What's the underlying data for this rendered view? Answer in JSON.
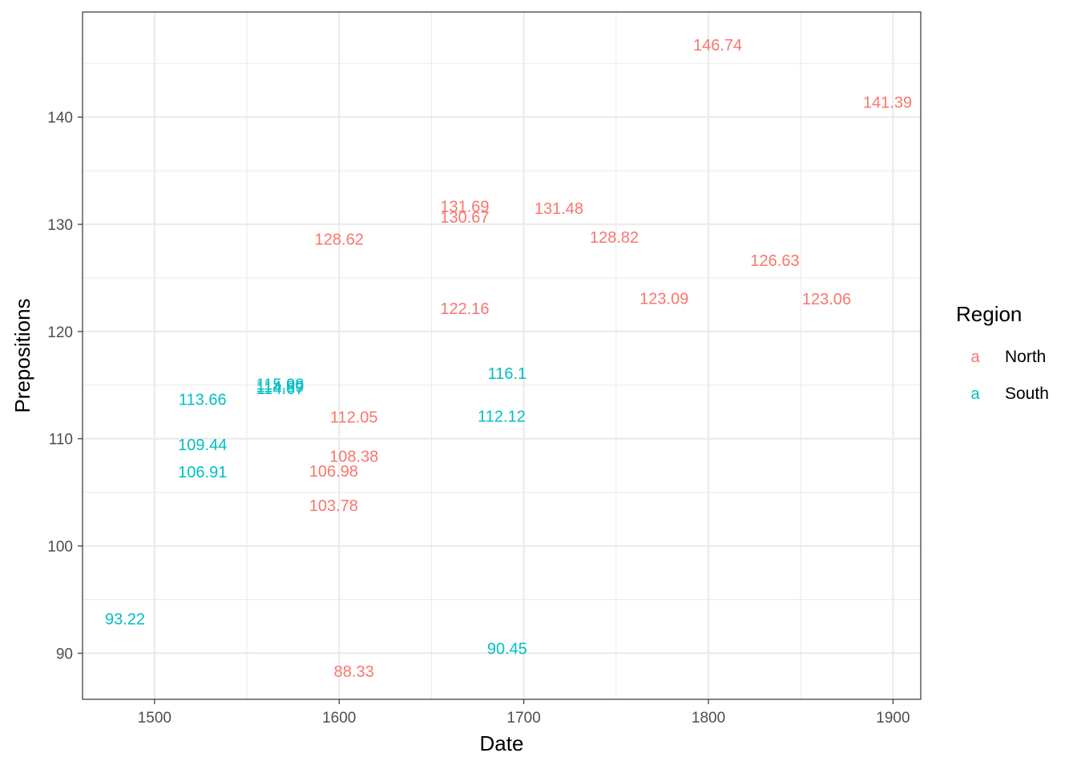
{
  "chart_data": {
    "type": "scatter",
    "mark": "text",
    "xlabel": "Date",
    "ylabel": "Prepositions",
    "xlim": [
      1461,
      1915
    ],
    "ylim": [
      85.7,
      149.8
    ],
    "xticks": [
      1500,
      1600,
      1700,
      1800,
      1900
    ],
    "yticks": [
      90,
      100,
      110,
      120,
      130,
      140
    ],
    "xticks_minor": [
      1550,
      1650,
      1750,
      1850
    ],
    "yticks_minor": [
      95,
      105,
      115,
      125,
      135,
      145
    ],
    "grid": true,
    "legend": {
      "title": "Region",
      "placement": "right",
      "key_glyph": "a"
    },
    "series": [
      {
        "name": "North",
        "color": "#F8766D",
        "points": [
          {
            "x": 1600,
            "y": 128.62,
            "label": "128.62"
          },
          {
            "x": 1608,
            "y": 112.05,
            "label": "112.05"
          },
          {
            "x": 1608,
            "y": 108.38,
            "label": "108.38"
          },
          {
            "x": 1597,
            "y": 106.98,
            "label": "106.98"
          },
          {
            "x": 1597,
            "y": 103.78,
            "label": "103.78"
          },
          {
            "x": 1608,
            "y": 88.33,
            "label": "88.33"
          },
          {
            "x": 1668,
            "y": 131.69,
            "label": "131.69"
          },
          {
            "x": 1668,
            "y": 130.67,
            "label": "130.67"
          },
          {
            "x": 1668,
            "y": 122.16,
            "label": "122.16"
          },
          {
            "x": 1719,
            "y": 131.48,
            "label": "131.48"
          },
          {
            "x": 1749,
            "y": 128.82,
            "label": "128.82"
          },
          {
            "x": 1776,
            "y": 123.09,
            "label": "123.09"
          },
          {
            "x": 1805,
            "y": 146.74,
            "label": "146.74"
          },
          {
            "x": 1836,
            "y": 126.63,
            "label": "126.63"
          },
          {
            "x": 1864,
            "y": 123.06,
            "label": "123.06"
          },
          {
            "x": 1897,
            "y": 141.39,
            "label": "141.39"
          }
        ]
      },
      {
        "name": "South",
        "color": "#00BFC4",
        "points": [
          {
            "x": 1484,
            "y": 93.22,
            "label": "93.22"
          },
          {
            "x": 1526,
            "y": 113.66,
            "label": "113.66"
          },
          {
            "x": 1526,
            "y": 109.44,
            "label": "109.44"
          },
          {
            "x": 1526,
            "y": 106.91,
            "label": "106.91"
          },
          {
            "x": 1568,
            "y": 115.08,
            "label": "115.08"
          },
          {
            "x": 1568,
            "y": 114.89,
            "label": "114.89"
          },
          {
            "x": 1568,
            "y": 114.67,
            "label": "114.67"
          },
          {
            "x": 1691,
            "y": 116.1,
            "label": "116.1"
          },
          {
            "x": 1688,
            "y": 112.12,
            "label": "112.12"
          },
          {
            "x": 1691,
            "y": 90.45,
            "label": "90.45"
          }
        ]
      }
    ]
  }
}
